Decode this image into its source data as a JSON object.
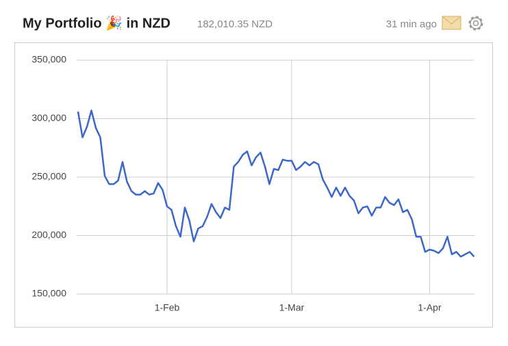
{
  "chart_data": {
    "type": "line",
    "title": "My Portfolio 🎉 in NZD",
    "subtitle": "182,010.35 NZD",
    "updated": "31 min ago",
    "x": [
      "12-Jan",
      "13-Jan",
      "14-Jan",
      "15-Jan",
      "16-Jan",
      "17-Jan",
      "18-Jan",
      "19-Jan",
      "20-Jan",
      "21-Jan",
      "22-Jan",
      "23-Jan",
      "24-Jan",
      "25-Jan",
      "26-Jan",
      "27-Jan",
      "28-Jan",
      "29-Jan",
      "30-Jan",
      "31-Jan",
      "1-Feb",
      "2-Feb",
      "3-Feb",
      "4-Feb",
      "5-Feb",
      "6-Feb",
      "7-Feb",
      "8-Feb",
      "9-Feb",
      "10-Feb",
      "11-Feb",
      "12-Feb",
      "13-Feb",
      "14-Feb",
      "15-Feb",
      "16-Feb",
      "17-Feb",
      "18-Feb",
      "19-Feb",
      "20-Feb",
      "21-Feb",
      "22-Feb",
      "23-Feb",
      "24-Feb",
      "25-Feb",
      "26-Feb",
      "27-Feb",
      "28-Feb",
      "1-Mar",
      "2-Mar",
      "3-Mar",
      "4-Mar",
      "5-Mar",
      "6-Mar",
      "7-Mar",
      "8-Mar",
      "9-Mar",
      "10-Mar",
      "11-Mar",
      "12-Mar",
      "13-Mar",
      "14-Mar",
      "15-Mar",
      "16-Mar",
      "17-Mar",
      "18-Mar",
      "19-Mar",
      "20-Mar",
      "21-Mar",
      "22-Mar",
      "23-Mar",
      "24-Mar",
      "25-Mar",
      "26-Mar",
      "27-Mar",
      "28-Mar",
      "29-Mar",
      "30-Mar",
      "31-Mar",
      "1-Apr",
      "2-Apr",
      "3-Apr",
      "4-Apr",
      "5-Apr",
      "6-Apr",
      "7-Apr",
      "8-Apr",
      "9-Apr",
      "10-Apr",
      "11-Apr"
    ],
    "series": [
      {
        "name": "Portfolio",
        "color": "#3a67c8",
        "values": [
          306000,
          284000,
          293000,
          307000,
          292000,
          284000,
          251000,
          244000,
          244000,
          247000,
          263000,
          246000,
          238000,
          235000,
          235000,
          238000,
          235000,
          236000,
          245000,
          239000,
          225000,
          222000,
          208000,
          199000,
          224000,
          213000,
          195000,
          206000,
          208000,
          216000,
          227000,
          220000,
          215000,
          224000,
          222000,
          259000,
          263000,
          269000,
          272000,
          260000,
          267000,
          271000,
          259000,
          244000,
          257000,
          256000,
          265000,
          264000,
          264000,
          256000,
          259000,
          263000,
          260000,
          263000,
          261000,
          248000,
          241000,
          233000,
          241000,
          234000,
          241000,
          234000,
          230000,
          219000,
          224000,
          225000,
          217000,
          224000,
          224000,
          233000,
          228000,
          226000,
          231000,
          220000,
          222000,
          214000,
          199000,
          199000,
          186000,
          188000,
          187000,
          185000,
          189000,
          199000,
          184000,
          186000,
          182000,
          184000,
          186000,
          182000
        ]
      }
    ],
    "xticks": [
      "1-Feb",
      "1-Mar",
      "1-Apr"
    ],
    "ylim": [
      150000,
      350000
    ],
    "yticks": [
      {
        "value": 150000,
        "label": "150,000"
      },
      {
        "value": 200000,
        "label": "200,000"
      },
      {
        "value": 250000,
        "label": "250,000"
      },
      {
        "value": 300000,
        "label": "300,000"
      },
      {
        "value": 350000,
        "label": "350,000"
      }
    ],
    "grid": true
  }
}
